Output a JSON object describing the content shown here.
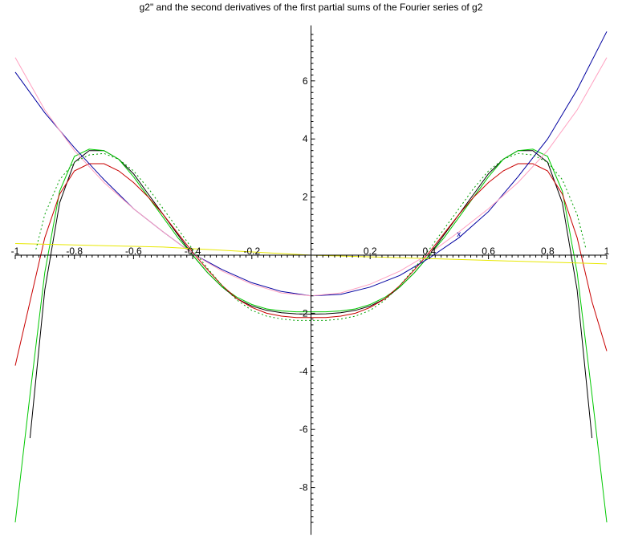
{
  "title": "g2\" and the second derivatives of the first partial sums of the Fourier series of g2",
  "chart_data": {
    "type": "line",
    "title": "g2\" and the second derivatives of the first partial sums of the Fourier series of g2",
    "xlabel": "",
    "ylabel": "",
    "xlim": [
      -1,
      1
    ],
    "ylim": [
      -9.3,
      7.8
    ],
    "grid": false,
    "x_ticks": [
      -1,
      -0.8,
      -0.6,
      -0.4,
      -0.2,
      0.2,
      0.4,
      0.6,
      0.8,
      1
    ],
    "x_tick_labels": [
      "-1",
      "-0.8",
      "-0.6",
      "-0.4",
      "-0.2",
      "0.2",
      "0.4",
      "0.6",
      "0.8",
      "1"
    ],
    "y_ticks": [
      -8,
      -6,
      -4,
      -2,
      2,
      4,
      6
    ],
    "y_tick_labels": [
      "-8",
      "-6",
      "-4",
      "-2",
      "2",
      "4",
      "6"
    ],
    "series": [
      {
        "color": "#000000",
        "dash": "",
        "x": [
          -0.95,
          -0.9,
          -0.85,
          -0.8,
          -0.75,
          -0.7,
          -0.65,
          -0.6,
          -0.55,
          -0.5,
          -0.45,
          -0.4,
          -0.35,
          -0.3,
          -0.25,
          -0.2,
          -0.15,
          -0.1,
          -0.05,
          0,
          0.05,
          0.1,
          0.15,
          0.2,
          0.25,
          0.3,
          0.35,
          0.4,
          0.45,
          0.5,
          0.55,
          0.6,
          0.65,
          0.7,
          0.75,
          0.8,
          0.85,
          0.9,
          0.95
        ],
        "y": [
          -6.3,
          -1.2,
          1.8,
          3.2,
          3.6,
          3.6,
          3.3,
          2.8,
          2.1,
          1.4,
          0.7,
          0.0,
          -0.6,
          -1.1,
          -1.5,
          -1.75,
          -1.9,
          -1.98,
          -2.02,
          -2.03,
          -2.02,
          -1.98,
          -1.9,
          -1.75,
          -1.5,
          -1.1,
          -0.6,
          0.0,
          0.7,
          1.4,
          2.1,
          2.8,
          3.3,
          3.6,
          3.6,
          3.2,
          1.8,
          -1.2,
          -6.3
        ]
      },
      {
        "color": "#00c800",
        "dash": "",
        "x": [
          -1,
          -0.95,
          -0.9,
          -0.85,
          -0.8,
          -0.75,
          -0.7,
          -0.65,
          -0.6,
          -0.55,
          -0.5,
          -0.45,
          -0.4,
          -0.35,
          -0.3,
          -0.25,
          -0.2,
          -0.15,
          -0.1,
          -0.05,
          0,
          0.05,
          0.1,
          0.15,
          0.2,
          0.25,
          0.3,
          0.35,
          0.4,
          0.45,
          0.5,
          0.55,
          0.6,
          0.65,
          0.7,
          0.75,
          0.8,
          0.85,
          0.9,
          0.95,
          1
        ],
        "y": [
          -9.2,
          -4.8,
          -0.6,
          2.2,
          3.4,
          3.65,
          3.6,
          3.3,
          2.7,
          2.0,
          1.3,
          0.6,
          0.0,
          -0.6,
          -1.1,
          -1.45,
          -1.7,
          -1.85,
          -1.92,
          -1.95,
          -1.95,
          -1.95,
          -1.92,
          -1.85,
          -1.7,
          -1.45,
          -1.1,
          -0.6,
          0.0,
          0.6,
          1.3,
          2.0,
          2.7,
          3.3,
          3.6,
          3.65,
          3.4,
          2.2,
          -0.6,
          -4.8,
          -9.2
        ]
      },
      {
        "color": "#c80000",
        "dash": "",
        "x": [
          -1,
          -0.95,
          -0.9,
          -0.85,
          -0.8,
          -0.75,
          -0.7,
          -0.65,
          -0.6,
          -0.55,
          -0.5,
          -0.45,
          -0.4,
          -0.35,
          -0.3,
          -0.25,
          -0.2,
          -0.15,
          -0.1,
          -0.05,
          0,
          0.05,
          0.1,
          0.15,
          0.2,
          0.25,
          0.3,
          0.35,
          0.4,
          0.45,
          0.5,
          0.55,
          0.6,
          0.65,
          0.7,
          0.75,
          0.8,
          0.85,
          0.9,
          0.95,
          1
        ],
        "y": [
          -3.8,
          -1.6,
          0.6,
          2.1,
          2.9,
          3.15,
          3.15,
          2.9,
          2.5,
          2.0,
          1.4,
          0.75,
          0.1,
          -0.5,
          -1.05,
          -1.5,
          -1.8,
          -2.0,
          -2.1,
          -2.15,
          -2.15,
          -2.15,
          -2.1,
          -2.0,
          -1.8,
          -1.5,
          -1.05,
          -0.5,
          0.1,
          0.75,
          1.4,
          2.0,
          2.5,
          2.9,
          3.15,
          3.15,
          2.9,
          2.1,
          0.6,
          -1.6,
          -3.3
        ]
      },
      {
        "color": "#0000a0",
        "dash": "",
        "x": [
          -1,
          -0.9,
          -0.8,
          -0.7,
          -0.6,
          -0.5,
          -0.4,
          -0.3,
          -0.2,
          -0.1,
          0,
          0.1,
          0.2,
          0.3,
          0.4,
          0.5,
          0.6,
          0.7,
          0.8,
          0.9,
          1
        ],
        "y": [
          6.3,
          4.9,
          3.7,
          2.6,
          1.6,
          0.8,
          0.05,
          -0.5,
          -0.95,
          -1.25,
          -1.4,
          -1.35,
          -1.1,
          -0.7,
          -0.1,
          0.6,
          1.5,
          2.7,
          4.0,
          5.7,
          7.7
        ]
      },
      {
        "color": "#ffa0c0",
        "dash": "",
        "x": [
          -1,
          -0.9,
          -0.8,
          -0.7,
          -0.6,
          -0.5,
          -0.4,
          -0.3,
          -0.2,
          -0.1,
          0,
          0.1,
          0.2,
          0.3,
          0.4,
          0.5,
          0.6,
          0.7,
          0.8,
          0.9,
          1
        ],
        "y": [
          6.8,
          5.0,
          3.6,
          2.5,
          1.6,
          0.8,
          0.05,
          -0.55,
          -1.0,
          -1.3,
          -1.4,
          -1.3,
          -1.0,
          -0.55,
          0.05,
          0.8,
          1.6,
          2.5,
          3.6,
          5.0,
          6.8
        ]
      },
      {
        "color": "#e8e800",
        "dash": "",
        "x": [
          -1,
          -0.5,
          0,
          0.5,
          1
        ],
        "y": [
          0.4,
          0.28,
          0.0,
          -0.15,
          -0.3
        ]
      },
      {
        "color": "#00a000",
        "dash": "2,3",
        "x": [
          -0.93,
          -0.9,
          -0.85,
          -0.8,
          -0.75,
          -0.7,
          -0.65,
          -0.6,
          -0.55,
          -0.5,
          -0.45,
          -0.4,
          -0.35,
          -0.3,
          -0.25,
          -0.2,
          -0.15,
          -0.1,
          -0.05,
          0,
          0.05,
          0.1,
          0.15,
          0.2,
          0.25,
          0.3,
          0.35,
          0.4,
          0.45,
          0.5,
          0.55,
          0.6,
          0.65,
          0.7,
          0.75,
          0.8,
          0.85,
          0.9,
          0.93
        ],
        "y": [
          0.2,
          1.4,
          2.6,
          3.2,
          3.45,
          3.5,
          3.3,
          2.9,
          2.3,
          1.6,
          0.9,
          0.2,
          -0.45,
          -1.05,
          -1.55,
          -1.9,
          -2.1,
          -2.2,
          -2.25,
          -2.25,
          -2.25,
          -2.2,
          -2.1,
          -1.9,
          -1.55,
          -1.05,
          -0.45,
          0.2,
          0.9,
          1.6,
          2.3,
          2.9,
          3.3,
          3.5,
          3.45,
          3.2,
          2.6,
          1.4,
          0.2
        ]
      }
    ],
    "annotations": [
      {
        "text": "x",
        "x": 0.5,
        "y": 0.75
      }
    ]
  }
}
